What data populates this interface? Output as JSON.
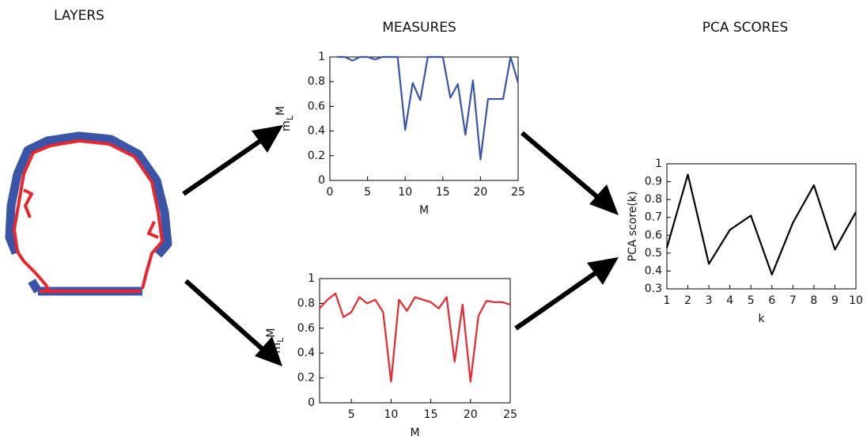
{
  "header": {
    "layers": "LAYERS",
    "measures": "MEASURES",
    "pca": "PCA SCORES"
  },
  "chart_data": [
    {
      "type": "line",
      "xlabel": "M",
      "ylabel": "m",
      "ylabel_sub": "L",
      "ylabel_sup": "M",
      "x": [
        1,
        2,
        3,
        4,
        5,
        6,
        7,
        8,
        9,
        10,
        11,
        12,
        13,
        14,
        15,
        16,
        17,
        18,
        19,
        20,
        21,
        22,
        23,
        24,
        25
      ],
      "series": [
        {
          "color": "#3a55a8",
          "values": [
            1,
            1,
            0.97,
            1,
            1,
            0.98,
            1,
            1,
            1,
            0.41,
            0.79,
            0.65,
            1,
            1,
            1,
            0.67,
            0.78,
            0.37,
            0.81,
            0.17,
            0.66,
            0.66,
            0.66,
            1,
            0.79
          ]
        }
      ],
      "xlim": [
        0,
        25
      ],
      "xticks": [
        0,
        5,
        10,
        15,
        20,
        25
      ],
      "ylim": [
        0,
        1
      ],
      "yticks": [
        0,
        0.2,
        0.4,
        0.6,
        0.8,
        1
      ]
    },
    {
      "type": "line",
      "xlabel": "M",
      "ylabel": "m",
      "ylabel_sub": "L",
      "ylabel_sup": "M",
      "x": [
        1,
        2,
        3,
        4,
        5,
        6,
        7,
        8,
        9,
        10,
        11,
        12,
        13,
        14,
        15,
        16,
        17,
        18,
        19,
        20,
        21,
        22,
        23,
        24,
        25
      ],
      "series": [
        {
          "color": "#e8262b",
          "values": [
            0.76,
            0.83,
            0.88,
            0.69,
            0.73,
            0.85,
            0.8,
            0.83,
            0.73,
            0.17,
            0.83,
            0.74,
            0.85,
            0.83,
            0.81,
            0.76,
            0.85,
            0.33,
            0.79,
            0.17,
            0.7,
            0.82,
            0.81,
            0.81,
            0.79
          ]
        }
      ],
      "xlim": [
        1,
        25
      ],
      "xticks": [
        5,
        10,
        15,
        20,
        25
      ],
      "ylim": [
        0,
        1
      ],
      "yticks": [
        0,
        0.2,
        0.4,
        0.6,
        0.8,
        1
      ]
    },
    {
      "type": "line",
      "xlabel": "k",
      "ylabel": "PCA score(k)",
      "x": [
        1,
        2,
        3,
        4,
        5,
        6,
        7,
        8,
        9,
        10
      ],
      "series": [
        {
          "color": "#000000",
          "values": [
            0.53,
            0.94,
            0.44,
            0.63,
            0.71,
            0.38,
            0.67,
            0.88,
            0.52,
            0.73
          ]
        }
      ],
      "xlim": [
        1,
        10
      ],
      "xticks": [
        1,
        2,
        3,
        4,
        5,
        6,
        7,
        8,
        9,
        10
      ],
      "ylim": [
        0.3,
        1
      ],
      "yticks": [
        0.3,
        0.4,
        0.5,
        0.6,
        0.7,
        0.8,
        0.9,
        1
      ]
    }
  ]
}
